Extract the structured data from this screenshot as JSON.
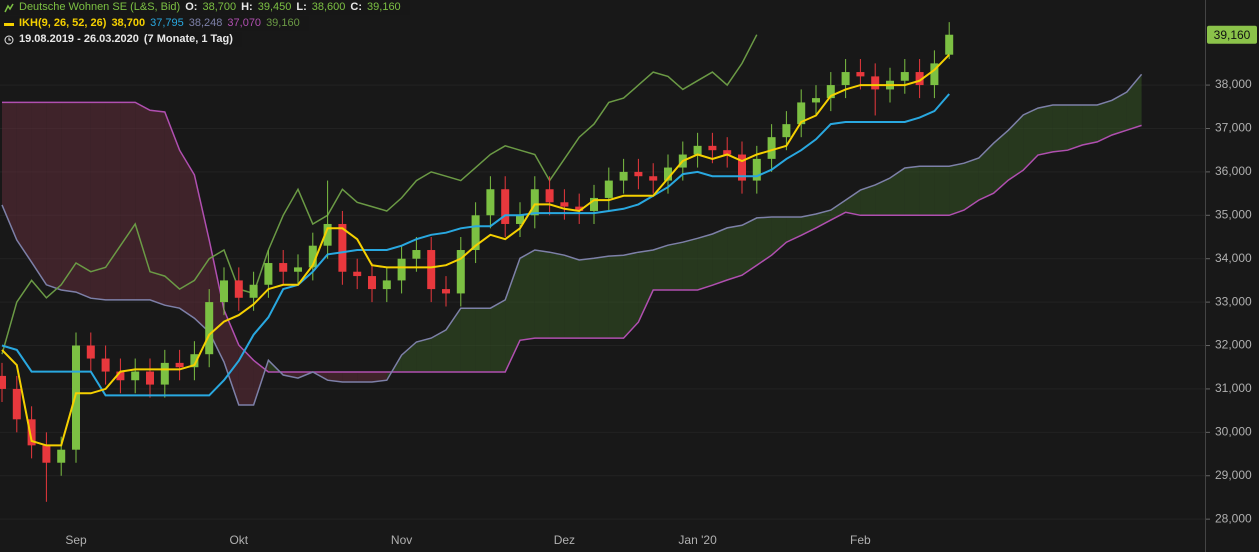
{
  "header": {
    "instrument": "Deutsche Wohnen SE (L&S, Bid)",
    "ohlc_labels": [
      "O:",
      "H:",
      "L:",
      "C:"
    ],
    "ohlc_values": [
      "38,700",
      "39,450",
      "38,600",
      "39,160"
    ],
    "indicator": "IKH(9, 26, 52, 26)",
    "period": "19.08.2019 - 26.03.2020",
    "duration": "(7 Monate, 1 Tag)"
  },
  "chart_data": {
    "type": "candlestick",
    "categories": [
      null,
      null,
      null,
      null,
      null,
      "Sep",
      null,
      null,
      null,
      null,
      null,
      null,
      null,
      null,
      null,
      null,
      "Okt",
      null,
      null,
      null,
      null,
      null,
      null,
      null,
      null,
      null,
      null,
      "Nov",
      null,
      null,
      null,
      null,
      null,
      null,
      null,
      null,
      null,
      null,
      "Dez",
      null,
      null,
      null,
      null,
      null,
      null,
      null,
      null,
      "Jan '20",
      null,
      null,
      null,
      null,
      null,
      null,
      null,
      null,
      null,
      null,
      "Feb",
      null,
      null,
      null,
      null,
      null,
      null,
      null,
      null,
      null,
      null,
      null,
      null,
      null,
      null,
      null,
      null,
      null,
      null,
      null
    ],
    "candles": {
      "up_color": "#7cc043",
      "down_color": "#e8383d",
      "open": [
        31300,
        31000,
        30300,
        29700,
        29300,
        29600,
        32000,
        31700,
        31400,
        31200,
        31400,
        31100,
        31600,
        31500,
        31800,
        33000,
        33500,
        33100,
        33400,
        33900,
        33700,
        33800,
        34300,
        34800,
        33700,
        33600,
        33300,
        33500,
        34000,
        34200,
        33300,
        33200,
        34200,
        35000,
        35600,
        34800,
        35000,
        35600,
        35300,
        35200,
        35100,
        35400,
        35800,
        36000,
        35900,
        35800,
        36100,
        36400,
        36600,
        36500,
        36400,
        35800,
        36300,
        36800,
        37100,
        37600,
        37700,
        38000,
        38300,
        38200,
        37900,
        38100,
        38300,
        38000,
        38700,
        null,
        null,
        null,
        null,
        null,
        null,
        null,
        null,
        null,
        null,
        null,
        null,
        null
      ],
      "high": [
        31600,
        31300,
        30600,
        30000,
        29900,
        32300,
        32300,
        32000,
        31700,
        31700,
        31700,
        31900,
        31900,
        32100,
        33300,
        33800,
        33800,
        33700,
        34200,
        34200,
        34100,
        34600,
        35800,
        35100,
        34000,
        33900,
        33800,
        34300,
        34500,
        34500,
        33600,
        34500,
        35300,
        35900,
        35900,
        35300,
        35900,
        35900,
        35600,
        35500,
        35700,
        36100,
        36300,
        36300,
        36200,
        36400,
        36700,
        36900,
        36900,
        36800,
        36700,
        36600,
        37100,
        37400,
        37900,
        38000,
        38300,
        38600,
        38600,
        38500,
        38400,
        38600,
        38600,
        38800,
        39450,
        null,
        null,
        null,
        null,
        null,
        null,
        null,
        null,
        null,
        null,
        null,
        null,
        null
      ],
      "low": [
        30700,
        30000,
        29400,
        28400,
        29000,
        29300,
        31400,
        31100,
        30900,
        30900,
        30800,
        30800,
        31200,
        31200,
        31500,
        32700,
        32800,
        32800,
        33100,
        33400,
        33400,
        33500,
        34000,
        33400,
        33300,
        33000,
        33000,
        33200,
        33700,
        33000,
        32900,
        32900,
        33900,
        34700,
        34500,
        34500,
        34700,
        35000,
        34900,
        34800,
        34800,
        35100,
        35500,
        35600,
        35500,
        35500,
        35800,
        36100,
        36200,
        36100,
        35500,
        35500,
        36000,
        36500,
        36800,
        37300,
        37400,
        37700,
        37900,
        37300,
        37600,
        37800,
        37700,
        37700,
        38600,
        null,
        null,
        null,
        null,
        null,
        null,
        null,
        null,
        null,
        null,
        null,
        null,
        null
      ],
      "close": [
        31000,
        30300,
        29700,
        29300,
        29600,
        32000,
        31700,
        31400,
        31200,
        31400,
        31100,
        31600,
        31500,
        31800,
        33000,
        33500,
        33100,
        33400,
        33900,
        33700,
        33800,
        34300,
        34800,
        33700,
        33600,
        33300,
        33500,
        34000,
        34200,
        33300,
        33200,
        34200,
        35000,
        35600,
        34800,
        35000,
        35600,
        35300,
        35200,
        35100,
        35400,
        35800,
        36000,
        35900,
        35800,
        36100,
        36400,
        36600,
        36500,
        36400,
        35800,
        36300,
        36800,
        37100,
        37600,
        37700,
        38000,
        38300,
        38200,
        37900,
        38100,
        38300,
        38000,
        38500,
        39160,
        null,
        null,
        null,
        null,
        null,
        null,
        null,
        null,
        null,
        null,
        null,
        null,
        null
      ]
    },
    "series": [
      {
        "color": "#f5d000",
        "value_label": "38,700",
        "values": [
          31900,
          31550,
          29800,
          29700,
          29700,
          30900,
          30900,
          31000,
          31400,
          31450,
          31450,
          31450,
          31450,
          31550,
          32250,
          32550,
          32700,
          32950,
          33300,
          33400,
          33400,
          33850,
          34700,
          34700,
          34450,
          33850,
          33800,
          33800,
          33800,
          33800,
          33850,
          34000,
          34300,
          34550,
          34450,
          34700,
          35250,
          35250,
          35150,
          35100,
          35350,
          35350,
          35450,
          35450,
          35450,
          35850,
          36250,
          36400,
          36300,
          36400,
          36250,
          36400,
          36500,
          36600,
          37150,
          37300,
          37750,
          37900,
          38000,
          38000,
          38000,
          38000,
          38100,
          38350,
          38700,
          null,
          null,
          null,
          null,
          null,
          null,
          null,
          null,
          null,
          null,
          null,
          null,
          null
        ]
      },
      {
        "color": "#29a8e0",
        "value_label": "37,795",
        "values": [
          32000,
          31900,
          31400,
          31400,
          31400,
          31400,
          31400,
          30850,
          30850,
          30850,
          30850,
          30850,
          30850,
          30850,
          30850,
          31200,
          31650,
          32250,
          32650,
          33300,
          33400,
          33700,
          34100,
          34150,
          34200,
          34200,
          34200,
          34300,
          34450,
          34550,
          34600,
          34700,
          34750,
          34750,
          35000,
          35000,
          35050,
          35050,
          35050,
          35050,
          35050,
          35100,
          35150,
          35250,
          35450,
          35650,
          35950,
          36000,
          35900,
          35900,
          35900,
          35900,
          36050,
          36300,
          36500,
          36750,
          37100,
          37150,
          37150,
          37150,
          37150,
          37150,
          37250,
          37400,
          37795,
          null,
          null,
          null,
          null,
          null,
          null,
          null,
          null,
          null,
          null,
          null,
          null,
          null
        ]
      },
      {
        "color": "#7d80a8",
        "value_label": "38,248",
        "values": [
          35240,
          34430,
          33920,
          33400,
          33280,
          33230,
          33090,
          33050,
          33050,
          33050,
          33050,
          32930,
          32860,
          32630,
          32310,
          31620,
          30630,
          30630,
          31660,
          31320,
          31250,
          31390,
          31200,
          31160,
          31160,
          31160,
          31200,
          31780,
          32080,
          32170,
          32360,
          32860,
          32860,
          32860,
          33050,
          34010,
          34200,
          34150,
          34080,
          33970,
          34010,
          34060,
          34080,
          34150,
          34200,
          34310,
          34380,
          34470,
          34570,
          34710,
          34770,
          34940,
          34960,
          34960,
          34960,
          35030,
          35120,
          35350,
          35580,
          35700,
          35860,
          36090,
          36130,
          36130,
          36130,
          36200,
          36320,
          36660,
          36960,
          37310,
          37470,
          37540,
          37540,
          37540,
          37540,
          37650,
          37840,
          38248
        ]
      },
      {
        "color": "#b04fb0",
        "value_label": "37,070",
        "values": [
          37600,
          37600,
          37600,
          37600,
          37600,
          37600,
          37600,
          37600,
          37600,
          37600,
          37420,
          37380,
          36500,
          35930,
          34430,
          32820,
          32010,
          31660,
          31390,
          31390,
          31390,
          31390,
          31390,
          31390,
          31390,
          31390,
          31390,
          31390,
          31390,
          31390,
          31390,
          31390,
          31390,
          31390,
          31390,
          32120,
          32170,
          32170,
          32170,
          32170,
          32170,
          32170,
          32170,
          32540,
          33280,
          33280,
          33280,
          33280,
          33390,
          33510,
          33620,
          33850,
          34080,
          34380,
          34540,
          34710,
          34890,
          35070,
          35000,
          35000,
          35000,
          35000,
          35000,
          35000,
          35000,
          35120,
          35350,
          35510,
          35810,
          36040,
          36390,
          36460,
          36500,
          36620,
          36690,
          36850,
          36960,
          37070
        ]
      },
      {
        "color": "#6b9a45",
        "value_label": "39,160",
        "values": [
          31800,
          33000,
          33500,
          33100,
          33400,
          33900,
          33700,
          33800,
          34300,
          34800,
          33700,
          33600,
          33300,
          33500,
          34000,
          34200,
          33300,
          33200,
          34200,
          35000,
          35600,
          34800,
          35000,
          35600,
          35300,
          35200,
          35100,
          35400,
          35800,
          36000,
          35900,
          35800,
          36100,
          36400,
          36600,
          36500,
          36400,
          35800,
          36300,
          36800,
          37100,
          37600,
          37700,
          38000,
          38300,
          38200,
          37900,
          38100,
          38300,
          38000,
          38500,
          39160,
          null,
          null,
          null,
          null,
          null,
          null,
          null,
          null,
          null,
          null,
          null,
          null,
          null,
          null,
          null,
          null,
          null,
          null,
          null,
          null,
          null,
          null,
          null,
          null,
          null,
          null
        ]
      }
    ],
    "cloud_colors": {
      "up": "rgba(52,84,36,0.55)",
      "down": "rgba(96,46,58,0.55)"
    },
    "ylim": [
      27750,
      39960
    ],
    "yticks": [
      {
        "value": 28000,
        "label": "28,000"
      },
      {
        "value": 29000,
        "label": "29,000"
      },
      {
        "value": 30000,
        "label": "30,000"
      },
      {
        "value": 31000,
        "label": "31,000"
      },
      {
        "value": 32000,
        "label": "32,000"
      },
      {
        "value": 33000,
        "label": "33,000"
      },
      {
        "value": 34000,
        "label": "34,000"
      },
      {
        "value": 35000,
        "label": "35,000"
      },
      {
        "value": 36000,
        "label": "36,000"
      },
      {
        "value": 37000,
        "label": "37,000"
      },
      {
        "value": 38000,
        "label": "38,000"
      }
    ],
    "grid": true,
    "price_tag": "39,160",
    "price_tag_color": "#8bc34a"
  }
}
